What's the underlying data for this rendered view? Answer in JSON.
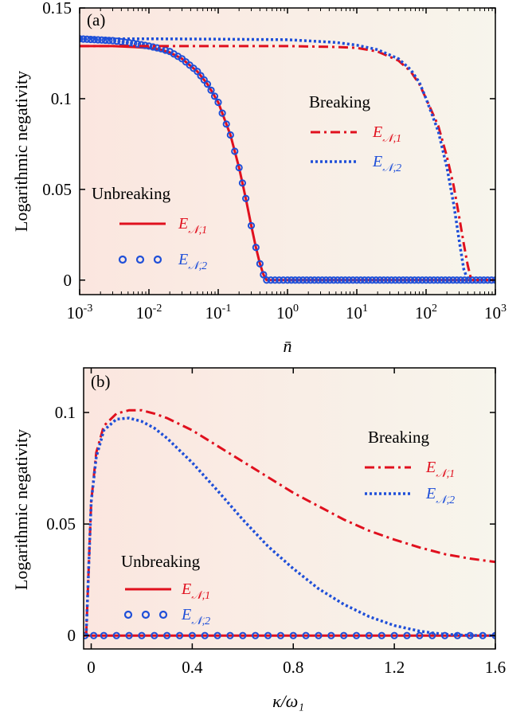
{
  "colors": {
    "red": "#e0101e",
    "blue": "#1f4fd8",
    "shade_left": "#fbe6df",
    "shade_right": "#f7f5ec",
    "axis": "#000000"
  },
  "chart_data": [
    {
      "type": "line",
      "panel_label": "(a)",
      "xlabel": "n̄",
      "ylabel": "Logarithmic negativity",
      "xscale": "log",
      "xlim": [
        0.001,
        1000
      ],
      "ylim": [
        -0.008,
        0.15
      ],
      "xticks": [
        0.001,
        0.01,
        0.1,
        1,
        10,
        100,
        1000
      ],
      "xtick_labels": [
        {
          "base": "10",
          "exp": "-3"
        },
        {
          "base": "10",
          "exp": "-2"
        },
        {
          "base": "10",
          "exp": "-1"
        },
        {
          "base": "10",
          "exp": "0"
        },
        {
          "base": "10",
          "exp": "1"
        },
        {
          "base": "10",
          "exp": "2"
        },
        {
          "base": "10",
          "exp": "3"
        }
      ],
      "yticks": [
        0,
        0.05,
        0.1,
        0.15
      ],
      "ytick_labels": [
        "0",
        "0.05",
        "0.1",
        "0.15"
      ],
      "legend_groups": [
        {
          "title": "Unbreaking",
          "entries": [
            {
              "label_main": "E",
              "label_sub": "𝒩,1",
              "series": "unbreaking_E1"
            },
            {
              "label_main": "E",
              "label_sub": "𝒩,2",
              "series": "unbreaking_E2"
            }
          ]
        },
        {
          "title": "Breaking",
          "entries": [
            {
              "label_main": "E",
              "label_sub": "𝒩,1",
              "series": "breaking_E1"
            },
            {
              "label_main": "E",
              "label_sub": "𝒩,2",
              "series": "breaking_E2"
            }
          ]
        }
      ],
      "series": [
        {
          "id": "unbreaking_E1",
          "color": "red",
          "style": "solid",
          "x": [
            0.001,
            0.003,
            0.006,
            0.01,
            0.015,
            0.02,
            0.03,
            0.05,
            0.07,
            0.1,
            0.15,
            0.2,
            0.25,
            0.3,
            0.35,
            0.4,
            0.45,
            0.5,
            1,
            10,
            100,
            1000
          ],
          "y": [
            0.129,
            0.129,
            0.1285,
            0.128,
            0.127,
            0.1255,
            0.122,
            0.115,
            0.108,
            0.098,
            0.08,
            0.062,
            0.045,
            0.03,
            0.018,
            0.009,
            0.003,
            0.0,
            0.0,
            0.0,
            0.0,
            0.0
          ]
        },
        {
          "id": "unbreaking_E2",
          "color": "blue",
          "style": "circles",
          "x": [
            0.001,
            0.003,
            0.006,
            0.01,
            0.015,
            0.02,
            0.03,
            0.05,
            0.07,
            0.1,
            0.15,
            0.2,
            0.25,
            0.3,
            0.35,
            0.4,
            0.45,
            0.5,
            1,
            10,
            100,
            1000
          ],
          "y": [
            0.133,
            0.132,
            0.1305,
            0.129,
            0.1275,
            0.126,
            0.122,
            0.115,
            0.108,
            0.098,
            0.08,
            0.062,
            0.045,
            0.03,
            0.018,
            0.009,
            0.003,
            0.0,
            0.0,
            0.0,
            0.0,
            0.0
          ]
        },
        {
          "id": "breaking_E1",
          "color": "red",
          "style": "dashdot",
          "x": [
            0.001,
            0.01,
            0.1,
            1,
            5,
            10,
            20,
            40,
            60,
            80,
            100,
            150,
            200,
            250,
            300,
            350,
            400,
            450,
            500,
            1000
          ],
          "y": [
            0.129,
            0.129,
            0.129,
            0.129,
            0.1285,
            0.128,
            0.126,
            0.121,
            0.115,
            0.108,
            0.1,
            0.085,
            0.068,
            0.052,
            0.035,
            0.02,
            0.008,
            0.0,
            0.0,
            0.0
          ]
        },
        {
          "id": "breaking_E2",
          "color": "blue",
          "style": "dotted",
          "x": [
            0.001,
            0.01,
            0.1,
            1,
            5,
            10,
            20,
            40,
            60,
            80,
            100,
            150,
            200,
            250,
            300,
            350,
            400,
            450,
            1000
          ],
          "y": [
            0.133,
            0.133,
            0.1328,
            0.1325,
            0.131,
            0.1295,
            0.127,
            0.122,
            0.116,
            0.109,
            0.1,
            0.082,
            0.062,
            0.042,
            0.022,
            0.006,
            0.0,
            0.0,
            0.0
          ]
        }
      ]
    },
    {
      "type": "line",
      "panel_label": "(b)",
      "xlabel": "κ/ω₁",
      "ylabel": "Logarithmic negativity",
      "xscale": "linear",
      "xlim": [
        -0.03,
        1.6
      ],
      "ylim": [
        -0.006,
        0.12
      ],
      "xticks": [
        0,
        0.4,
        0.8,
        1.2,
        1.6
      ],
      "xtick_labels": [
        "0",
        "0.4",
        "0.8",
        "1.2",
        "1.6"
      ],
      "yticks": [
        0,
        0.05,
        0.1
      ],
      "ytick_labels": [
        "0",
        "0.05",
        "0.1"
      ],
      "legend_groups": [
        {
          "title": "Unbreaking",
          "entries": [
            {
              "label_main": "E",
              "label_sub": "𝒩,1",
              "series": "unbreaking_E1"
            },
            {
              "label_main": "E",
              "label_sub": "𝒩,2",
              "series": "unbreaking_E2"
            }
          ]
        },
        {
          "title": "Breaking",
          "entries": [
            {
              "label_main": "E",
              "label_sub": "𝒩,1",
              "series": "breaking_E1"
            },
            {
              "label_main": "E",
              "label_sub": "𝒩,2",
              "series": "breaking_E2"
            }
          ]
        }
      ],
      "series": [
        {
          "id": "unbreaking_E1",
          "color": "red",
          "style": "solid",
          "x": [
            -0.03,
            1.6
          ],
          "y": [
            0,
            0
          ]
        },
        {
          "id": "unbreaking_E2",
          "color": "blue",
          "style": "circles",
          "x": [
            -0.025,
            0.01,
            0.05,
            0.1,
            0.15,
            0.2,
            0.25,
            0.3,
            0.35,
            0.4,
            0.45,
            0.5,
            0.55,
            0.6,
            0.65,
            0.7,
            0.75,
            0.8,
            0.85,
            0.9,
            0.95,
            1.0,
            1.05,
            1.1,
            1.15,
            1.2,
            1.25,
            1.3,
            1.35,
            1.4,
            1.45,
            1.5,
            1.55,
            1.6
          ],
          "y": [
            0,
            0,
            0,
            0,
            0,
            0,
            0,
            0,
            0,
            0,
            0,
            0,
            0,
            0,
            0,
            0,
            0,
            0,
            0,
            0,
            0,
            0,
            0,
            0,
            0,
            0,
            0,
            0,
            0,
            0,
            0,
            0,
            0,
            0
          ]
        },
        {
          "id": "breaking_E1",
          "color": "red",
          "style": "dashdot",
          "x": [
            -0.02,
            -0.01,
            0.0,
            0.02,
            0.05,
            0.1,
            0.15,
            0.2,
            0.25,
            0.3,
            0.4,
            0.5,
            0.6,
            0.7,
            0.8,
            0.9,
            1.0,
            1.1,
            1.2,
            1.3,
            1.4,
            1.5,
            1.6
          ],
          "y": [
            0.0,
            0.03,
            0.06,
            0.082,
            0.094,
            0.0995,
            0.101,
            0.101,
            0.0995,
            0.0975,
            0.092,
            0.085,
            0.078,
            0.071,
            0.064,
            0.058,
            0.052,
            0.047,
            0.043,
            0.0395,
            0.0365,
            0.0345,
            0.033
          ]
        },
        {
          "id": "breaking_E2",
          "color": "blue",
          "style": "dotted",
          "x": [
            -0.02,
            -0.01,
            0.0,
            0.02,
            0.05,
            0.1,
            0.15,
            0.2,
            0.25,
            0.3,
            0.4,
            0.5,
            0.6,
            0.7,
            0.8,
            0.9,
            1.0,
            1.1,
            1.2,
            1.3,
            1.35,
            1.4,
            1.45,
            1.5,
            1.55,
            1.6
          ],
          "y": [
            0.0,
            0.03,
            0.06,
            0.08,
            0.092,
            0.097,
            0.0975,
            0.096,
            0.093,
            0.0885,
            0.0775,
            0.065,
            0.052,
            0.04,
            0.03,
            0.021,
            0.014,
            0.0085,
            0.0045,
            0.002,
            0.0012,
            0.0006,
            0.0003,
            0.0001,
            0.0,
            0.0
          ]
        }
      ]
    }
  ]
}
